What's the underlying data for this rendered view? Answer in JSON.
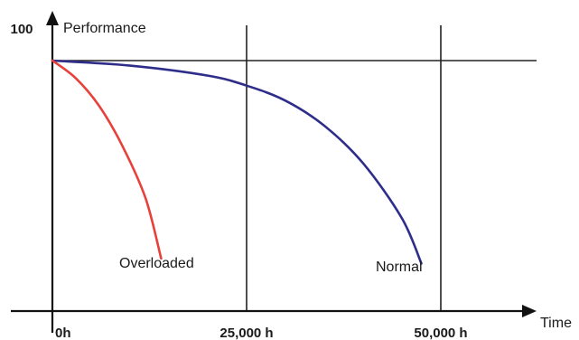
{
  "chart_data": {
    "type": "line",
    "title": "",
    "xlabel": "Time",
    "ylabel": "Performance",
    "y_top_label": "100",
    "x_ticks": [
      {
        "value": 0,
        "label": "0h"
      },
      {
        "value": 25000,
        "label": "25,000 h"
      },
      {
        "value": 50000,
        "label": "50,000 h"
      }
    ],
    "xlim": [
      0,
      62000
    ],
    "ylim": [
      0,
      108
    ],
    "reference_line_y": 100,
    "grid": "vertical lines at 25,000 h and 50,000 h; horizontal line at 100",
    "legend": "inline labels",
    "series": [
      {
        "name": "Normal",
        "color": "#2e2e8a",
        "x": [
          0,
          10000,
          20000,
          25000,
          30000,
          35000,
          40000,
          45000,
          47500
        ],
        "y": [
          100,
          98,
          94,
          90,
          84,
          74,
          59,
          37,
          19
        ]
      },
      {
        "name": "Overloaded",
        "color": "#e8403a",
        "x": [
          0,
          3000,
          6000,
          9000,
          12000,
          14000
        ],
        "y": [
          100,
          93,
          82,
          66,
          45,
          21
        ]
      }
    ]
  }
}
